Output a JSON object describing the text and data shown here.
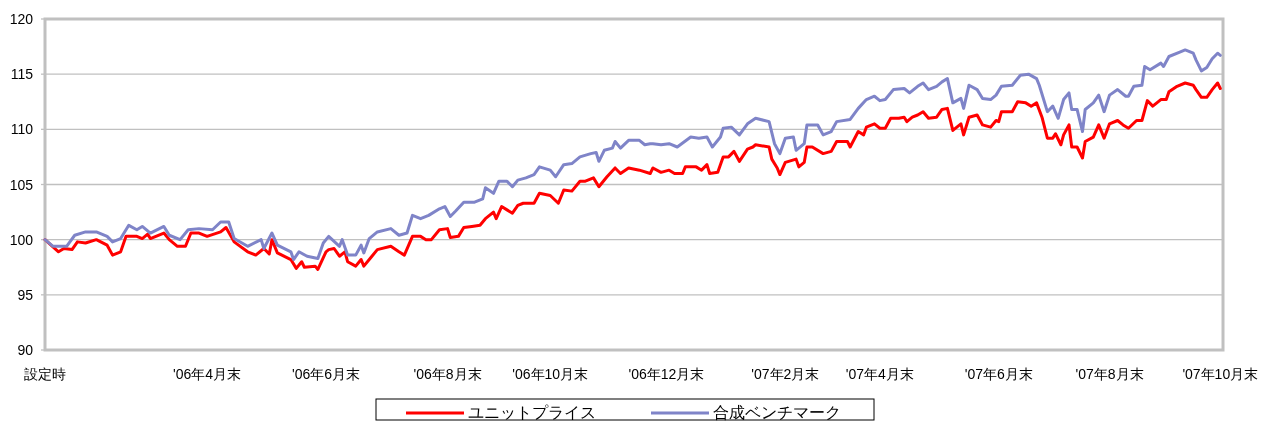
{
  "chart_data": {
    "type": "line",
    "ylim": [
      90,
      120
    ],
    "yticks": [
      90,
      95,
      100,
      105,
      110,
      115,
      120
    ],
    "categories": [
      "設定時",
      null,
      null,
      null,
      null,
      null,
      null,
      null,
      null,
      null,
      null,
      null,
      null,
      null,
      null,
      null,
      null,
      null,
      null,
      null,
      null,
      null,
      null,
      null,
      null,
      null,
      null,
      null,
      null,
      null,
      null,
      null,
      null,
      null,
      null,
      null,
      null,
      null,
      null,
      null,
      null,
      null,
      null,
      null,
      null,
      null,
      null,
      null,
      null,
      null,
      null,
      null,
      null,
      null,
      null,
      null,
      null,
      null,
      null,
      null,
      "'06年4月末",
      null,
      null,
      null,
      null,
      null,
      null,
      null,
      null,
      null,
      null,
      null,
      null,
      null,
      null,
      null,
      null,
      null,
      null,
      null,
      null,
      null,
      null,
      null,
      null,
      null,
      null,
      null,
      null,
      null,
      null,
      null,
      null,
      null,
      null,
      null,
      null,
      null,
      null,
      null,
      null,
      null,
      null,
      null,
      "'06年6月末",
      null,
      null,
      null,
      null,
      null,
      null,
      null,
      null,
      null,
      null,
      null,
      null,
      null,
      null,
      null,
      null,
      null,
      null,
      null,
      null,
      null,
      null,
      null,
      null,
      null,
      null,
      null,
      null,
      null,
      null,
      null,
      null,
      null,
      null,
      null,
      null,
      null,
      null,
      null,
      null,
      null,
      null,
      null,
      null,
      "'06年8月末",
      null,
      null,
      null,
      null,
      null,
      null,
      null,
      null,
      null,
      null,
      null,
      null,
      null,
      null,
      null,
      null,
      null,
      null,
      null,
      null,
      null,
      null,
      null,
      null,
      null,
      null,
      null,
      null,
      null,
      null,
      null,
      null,
      null,
      null,
      null,
      null,
      null,
      "'06年10月末",
      null,
      null,
      null,
      null,
      null,
      null,
      null,
      null,
      null,
      null,
      null,
      null,
      null,
      null,
      null,
      null,
      null,
      null,
      null,
      null,
      null,
      null,
      null,
      null,
      null,
      null,
      null,
      null,
      null,
      null,
      null,
      null,
      null,
      null,
      null,
      null,
      null,
      null,
      null,
      null,
      null,
      null,
      "'06年12月末",
      null,
      null,
      null,
      null,
      null,
      null,
      null,
      null,
      null,
      null,
      null,
      null,
      null,
      null,
      null,
      null,
      null,
      null,
      null,
      null,
      null,
      null,
      null,
      null,
      null,
      null,
      null,
      null,
      null,
      null,
      null,
      null,
      null,
      null,
      null,
      null,
      null,
      null,
      null,
      null,
      null,
      null,
      null,
      "'07年2月末",
      null,
      null,
      null,
      null,
      null,
      null,
      null,
      null,
      null,
      null,
      null,
      null,
      null,
      null,
      null,
      null,
      null,
      null,
      null,
      null,
      null,
      null,
      null,
      null,
      null,
      null,
      null,
      null,
      null,
      null,
      null,
      null,
      null,
      null,
      "'07年4月末",
      null,
      null,
      null,
      null,
      null,
      null,
      null,
      null,
      null,
      null,
      null,
      null,
      null,
      null,
      null,
      null,
      null,
      null,
      null,
      null,
      null,
      null,
      null,
      null,
      null,
      null,
      null,
      null,
      null,
      null,
      null,
      null,
      null,
      null,
      null,
      null,
      null,
      null,
      null,
      null,
      null,
      null,
      null,
      "'07年6月末",
      null,
      null,
      null,
      null,
      null,
      null,
      null,
      null,
      null,
      null,
      null,
      null,
      null,
      null,
      null,
      null,
      null,
      null,
      null,
      null,
      null,
      null,
      null,
      null,
      null,
      null,
      null,
      null,
      null,
      null,
      null,
      null,
      null,
      null,
      null,
      null,
      null,
      null,
      null,
      null,
      "'07年8月末",
      null,
      null,
      null,
      null,
      null,
      null,
      null,
      null,
      null,
      null,
      null,
      null,
      null,
      null,
      null,
      null,
      null,
      null,
      null,
      null,
      null,
      null,
      null,
      null,
      null,
      null,
      null,
      null,
      null,
      null,
      null,
      null,
      null,
      null,
      null,
      null,
      null,
      null,
      null,
      null,
      "'07年10月末",
      null
    ],
    "grid": "y",
    "legend": "bottom",
    "marker": "none",
    "line_style": "solid",
    "series": [
      {
        "name": "ユニットプライス",
        "color": "#ff0000",
        "values": [
          100.0,
          null,
          null,
          null,
          null,
          98.9,
          null,
          99.2,
          null,
          null,
          99.1,
          null,
          99.8,
          null,
          null,
          99.7,
          null,
          null,
          null,
          100.0,
          null,
          null,
          null,
          99.5,
          null,
          98.6,
          null,
          null,
          98.9,
          null,
          100.3,
          null,
          null,
          null,
          100.3,
          null,
          100.1,
          null,
          100.5,
          100.1,
          null,
          null,
          null,
          null,
          100.6,
          null,
          100.0,
          null,
          null,
          99.4,
          null,
          null,
          99.4,
          null,
          100.6,
          null,
          null,
          100.6,
          null,
          null,
          100.3,
          null,
          null,
          null,
          null,
          100.7,
          null,
          101.1,
          null,
          null,
          99.8,
          null,
          null,
          null,
          null,
          98.9,
          null,
          null,
          98.6,
          null,
          null,
          99.2,
          null,
          98.7,
          100.0,
          null,
          98.8,
          null,
          null,
          null,
          null,
          98.2,
          null,
          97.4,
          null,
          98.0,
          97.5,
          null,
          null,
          null,
          97.6,
          97.3,
          null,
          null,
          98.9,
          99.1,
          null,
          99.2,
          null,
          98.5,
          null,
          98.9,
          98.0,
          null,
          null,
          97.6,
          null,
          98.2,
          97.6,
          null,
          null,
          98.5,
          null,
          99.1,
          null,
          null,
          null,
          null,
          99.4,
          null,
          null,
          98.9,
          null,
          98.6,
          null,
          null,
          100.3,
          null,
          null,
          100.3,
          null,
          100.0,
          null,
          100.0,
          null,
          null,
          100.9,
          null,
          null,
          101.0,
          100.2,
          null,
          null,
          100.3,
          null,
          101.1,
          null,
          null,
          101.2,
          null,
          null,
          101.3,
          null,
          101.9,
          null,
          null,
          102.5,
          101.9,
          null,
          103.0,
          null,
          102.7,
          null,
          102.4,
          null,
          103.1,
          null,
          103.3,
          null,
          null,
          null,
          103.3,
          null,
          104.2,
          null,
          null,
          null,
          104.0,
          null,
          null,
          103.3,
          null,
          104.5,
          null,
          null,
          104.4,
          null,
          null,
          105.3,
          null,
          105.3,
          null,
          null,
          105.6,
          null,
          104.8,
          null,
          null,
          105.7,
          null,
          null,
          106.5,
          null,
          106.0,
          null,
          null,
          106.5,
          null,
          null,
          null,
          106.3,
          null,
          null,
          null,
          106.0,
          106.5,
          null,
          null,
          106.1,
          null,
          null,
          106.3,
          null,
          106.0,
          null,
          null,
          106.0,
          106.6,
          null,
          null,
          null,
          106.6,
          null,
          106.3,
          null,
          106.8,
          106.0,
          null,
          null,
          106.1,
          null,
          107.5,
          null,
          107.5,
          null,
          108.0,
          null,
          107.1,
          null,
          null,
          108.2,
          null,
          108.4,
          108.6,
          null,
          null,
          null,
          null,
          108.4,
          107.3,
          null,
          106.5,
          105.9,
          null,
          107.0,
          null,
          null,
          null,
          107.3,
          106.6,
          null,
          107.0,
          108.4,
          null,
          108.4,
          null,
          null,
          null,
          107.8,
          null,
          null,
          108.0,
          null,
          108.9,
          null,
          null,
          null,
          108.9,
          108.4,
          null,
          null,
          109.8,
          null,
          109.5,
          110.2,
          null,
          null,
          110.5,
          null,
          110.1,
          null,
          110.1,
          null,
          111.0,
          null,
          null,
          111.0,
          null,
          111.1,
          110.7,
          null,
          111.1,
          null,
          111.3,
          null,
          111.6,
          null,
          111.0,
          null,
          null,
          111.1,
          null,
          111.8,
          null,
          111.9,
          null,
          109.9,
          null,
          null,
          110.5,
          109.5,
          null,
          111.1,
          null,
          null,
          111.3,
          null,
          110.4,
          null,
          null,
          110.2,
          null,
          110.8,
          110.7,
          111.6,
          null,
          null,
          null,
          111.6,
          null,
          112.5,
          null,
          null,
          112.4,
          null,
          112.1,
          null,
          112.4,
          null,
          111.1,
          null,
          109.2,
          null,
          109.2,
          109.6,
          null,
          108.6,
          109.5,
          null,
          110.4,
          108.4,
          null,
          108.4,
          null,
          107.4,
          108.9,
          null,
          null,
          109.3,
          null,
          110.4,
          null,
          109.2,
          null,
          110.5,
          null,
          null,
          110.8,
          null,
          110.4,
          null,
          110.1,
          null,
          null,
          110.8,
          null,
          110.8,
          null,
          112.6,
          null,
          112.1,
          null,
          null,
          112.7,
          null,
          112.7,
          113.4,
          null,
          null,
          113.9,
          null,
          null,
          114.2,
          null,
          null,
          114.0,
          113.6,
          null,
          112.9,
          null,
          112.9,
          null,
          113.6,
          null,
          114.2,
          113.7,
          null
        ]
      },
      {
        "name": "合成ベンチマーク",
        "color": "#7f84c8",
        "values": [
          100.0,
          null,
          null,
          99.4,
          null,
          null,
          99.4,
          null,
          99.4,
          null,
          null,
          100.4,
          null,
          null,
          null,
          100.7,
          null,
          null,
          null,
          100.7,
          null,
          null,
          null,
          100.3,
          null,
          99.8,
          null,
          null,
          100.1,
          null,
          null,
          101.3,
          null,
          null,
          100.9,
          null,
          101.2,
          null,
          null,
          100.6,
          null,
          null,
          null,
          null,
          101.2,
          null,
          100.4,
          null,
          null,
          null,
          100.0,
          null,
          null,
          100.9,
          null,
          null,
          null,
          101.0,
          null,
          null,
          null,
          null,
          100.9,
          null,
          null,
          101.6,
          null,
          null,
          101.6,
          null,
          100.1,
          null,
          null,
          null,
          null,
          99.4,
          null,
          null,
          null,
          null,
          100.0,
          99.2,
          null,
          null,
          100.6,
          null,
          99.5,
          null,
          null,
          null,
          null,
          98.9,
          98.2,
          null,
          98.9,
          null,
          null,
          98.5,
          null,
          null,
          null,
          98.3,
          null,
          99.7,
          null,
          100.3,
          null,
          null,
          null,
          99.4,
          100.0,
          null,
          98.6,
          null,
          null,
          98.6,
          null,
          99.5,
          98.8,
          null,
          100.1,
          null,
          null,
          100.7,
          null,
          null,
          null,
          null,
          101.0,
          null,
          null,
          100.4,
          null,
          null,
          100.6,
          null,
          102.2,
          null,
          null,
          101.9,
          null,
          null,
          102.2,
          null,
          null,
          null,
          102.8,
          null,
          103.0,
          null,
          102.1,
          null,
          102.6,
          null,
          null,
          103.4,
          null,
          null,
          null,
          103.4,
          null,
          null,
          103.7,
          104.7,
          null,
          null,
          104.2,
          null,
          105.3,
          null,
          null,
          105.3,
          null,
          104.8,
          null,
          105.4,
          null,
          null,
          105.6,
          null,
          null,
          105.9,
          null,
          106.6,
          null,
          null,
          null,
          106.3,
          null,
          105.7,
          null,
          null,
          106.8,
          null,
          null,
          106.9,
          null,
          null,
          107.5,
          null,
          null,
          null,
          107.8,
          null,
          107.9,
          107.1,
          null,
          108.1,
          null,
          null,
          108.3,
          108.9,
          null,
          108.3,
          null,
          null,
          109.0,
          null,
          null,
          null,
          109.0,
          null,
          108.6,
          null,
          108.7,
          108.7,
          null,
          null,
          108.6,
          null,
          null,
          108.7,
          null,
          null,
          108.4,
          null,
          null,
          null,
          null,
          109.3,
          null,
          null,
          109.2,
          null,
          null,
          109.3,
          null,
          108.4,
          null,
          null,
          109.3,
          110.1,
          null,
          null,
          110.2,
          null,
          null,
          109.5,
          null,
          null,
          110.5,
          null,
          null,
          111.0,
          null,
          null,
          null,
          null,
          110.7,
          null,
          108.7,
          null,
          107.8,
          null,
          109.2,
          null,
          null,
          109.3,
          108.1,
          null,
          null,
          108.7,
          110.4,
          null,
          null,
          null,
          110.4,
          null,
          109.5,
          null,
          null,
          109.8,
          null,
          110.7,
          null,
          null,
          null,
          null,
          110.9,
          null,
          null,
          111.9,
          null,
          null,
          112.7,
          null,
          null,
          113.0,
          null,
          112.6,
          null,
          112.7,
          null,
          null,
          113.6,
          null,
          null,
          null,
          113.7,
          null,
          113.3,
          null,
          null,
          113.9,
          null,
          114.2,
          null,
          113.6,
          null,
          null,
          113.9,
          null,
          114.3,
          null,
          114.6,
          null,
          112.4,
          null,
          null,
          112.8,
          111.9,
          null,
          114.0,
          null,
          null,
          113.6,
          null,
          112.8,
          null,
          null,
          112.7,
          null,
          113.1,
          null,
          113.9,
          null,
          null,
          null,
          114.0,
          null,
          null,
          114.9,
          null,
          null,
          115.0,
          null,
          null,
          114.6,
          114.0,
          null,
          null,
          111.6,
          null,
          112.1,
          null,
          111.0,
          null,
          112.7,
          null,
          113.3,
          111.8,
          null,
          111.8,
          null,
          109.8,
          111.8,
          null,
          null,
          112.4,
          null,
          113.1,
          null,
          111.6,
          null,
          113.1,
          null,
          null,
          113.6,
          null,
          null,
          113.0,
          113.0,
          null,
          113.9,
          null,
          null,
          114.0,
          115.7,
          null,
          115.4,
          null,
          null,
          null,
          116.0,
          115.7,
          null,
          116.6,
          null,
          null,
          null,
          117.0,
          null,
          117.2,
          null,
          null,
          116.9,
          116.3,
          null,
          115.3,
          null,
          115.6,
          null,
          116.4,
          null,
          116.9,
          116.7,
          null
        ]
      }
    ]
  }
}
